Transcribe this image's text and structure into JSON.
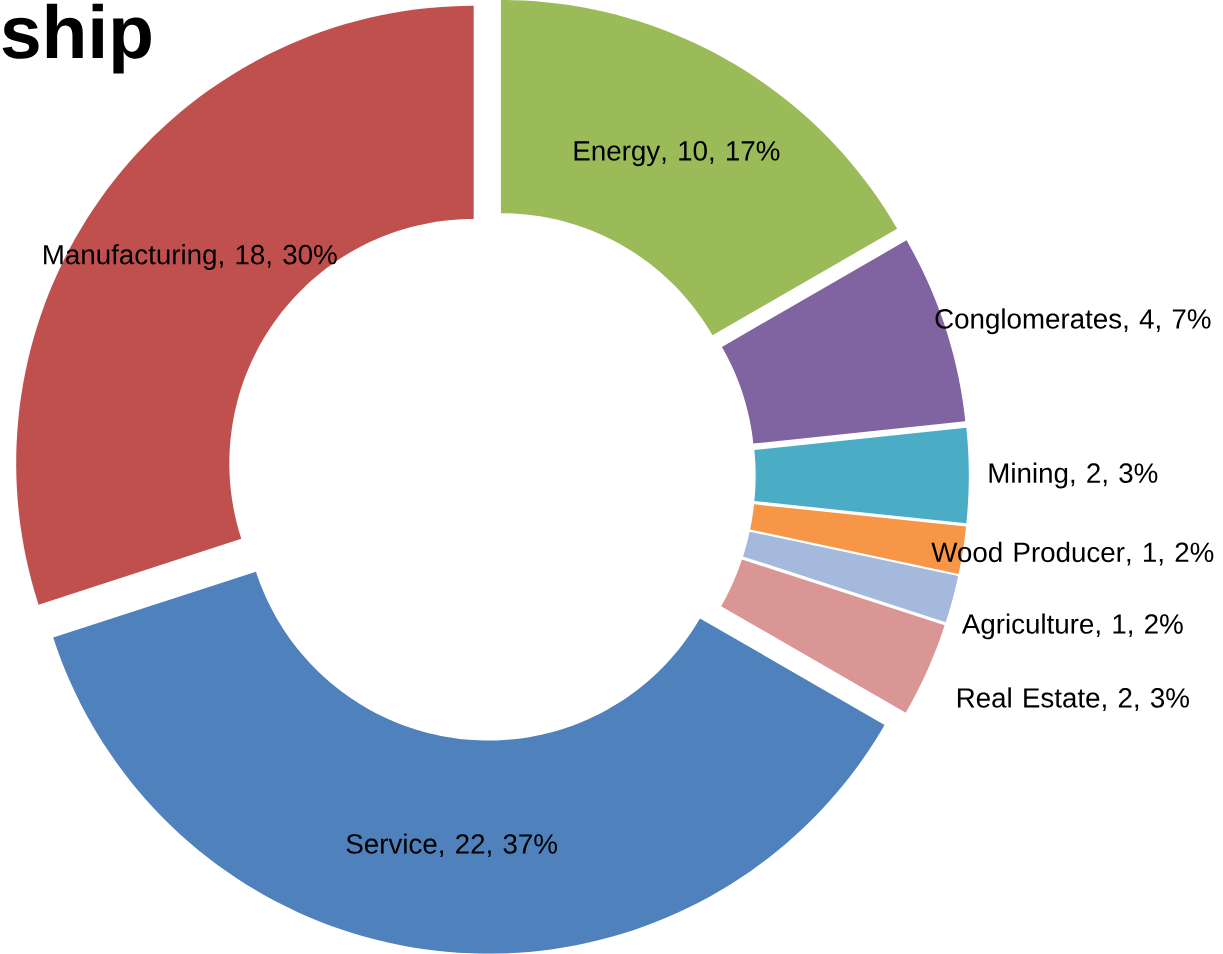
{
  "chart_data": {
    "type": "donut",
    "title": "ship",
    "categories": [
      "Energy",
      "Conglomerates",
      "Mining",
      "Wood Producer",
      "Agriculture",
      "Real Estate",
      "Service",
      "Manufacturing"
    ],
    "values": [
      10,
      4,
      2,
      1,
      1,
      2,
      22,
      18
    ],
    "value_labels": [
      ", 10, 17%",
      ", 4, 7%",
      ", 2, 3%",
      ", 1, 2%",
      ", 1, 2%",
      ", 2, 3%",
      ", 22, 37%",
      ", 18, 30%"
    ],
    "colors": [
      "#9bbb59",
      "#8064a2",
      "#4bacc6",
      "#f79646",
      "#a5b9dc",
      "#d99694",
      "#4f81bd",
      "#c0504d"
    ]
  }
}
